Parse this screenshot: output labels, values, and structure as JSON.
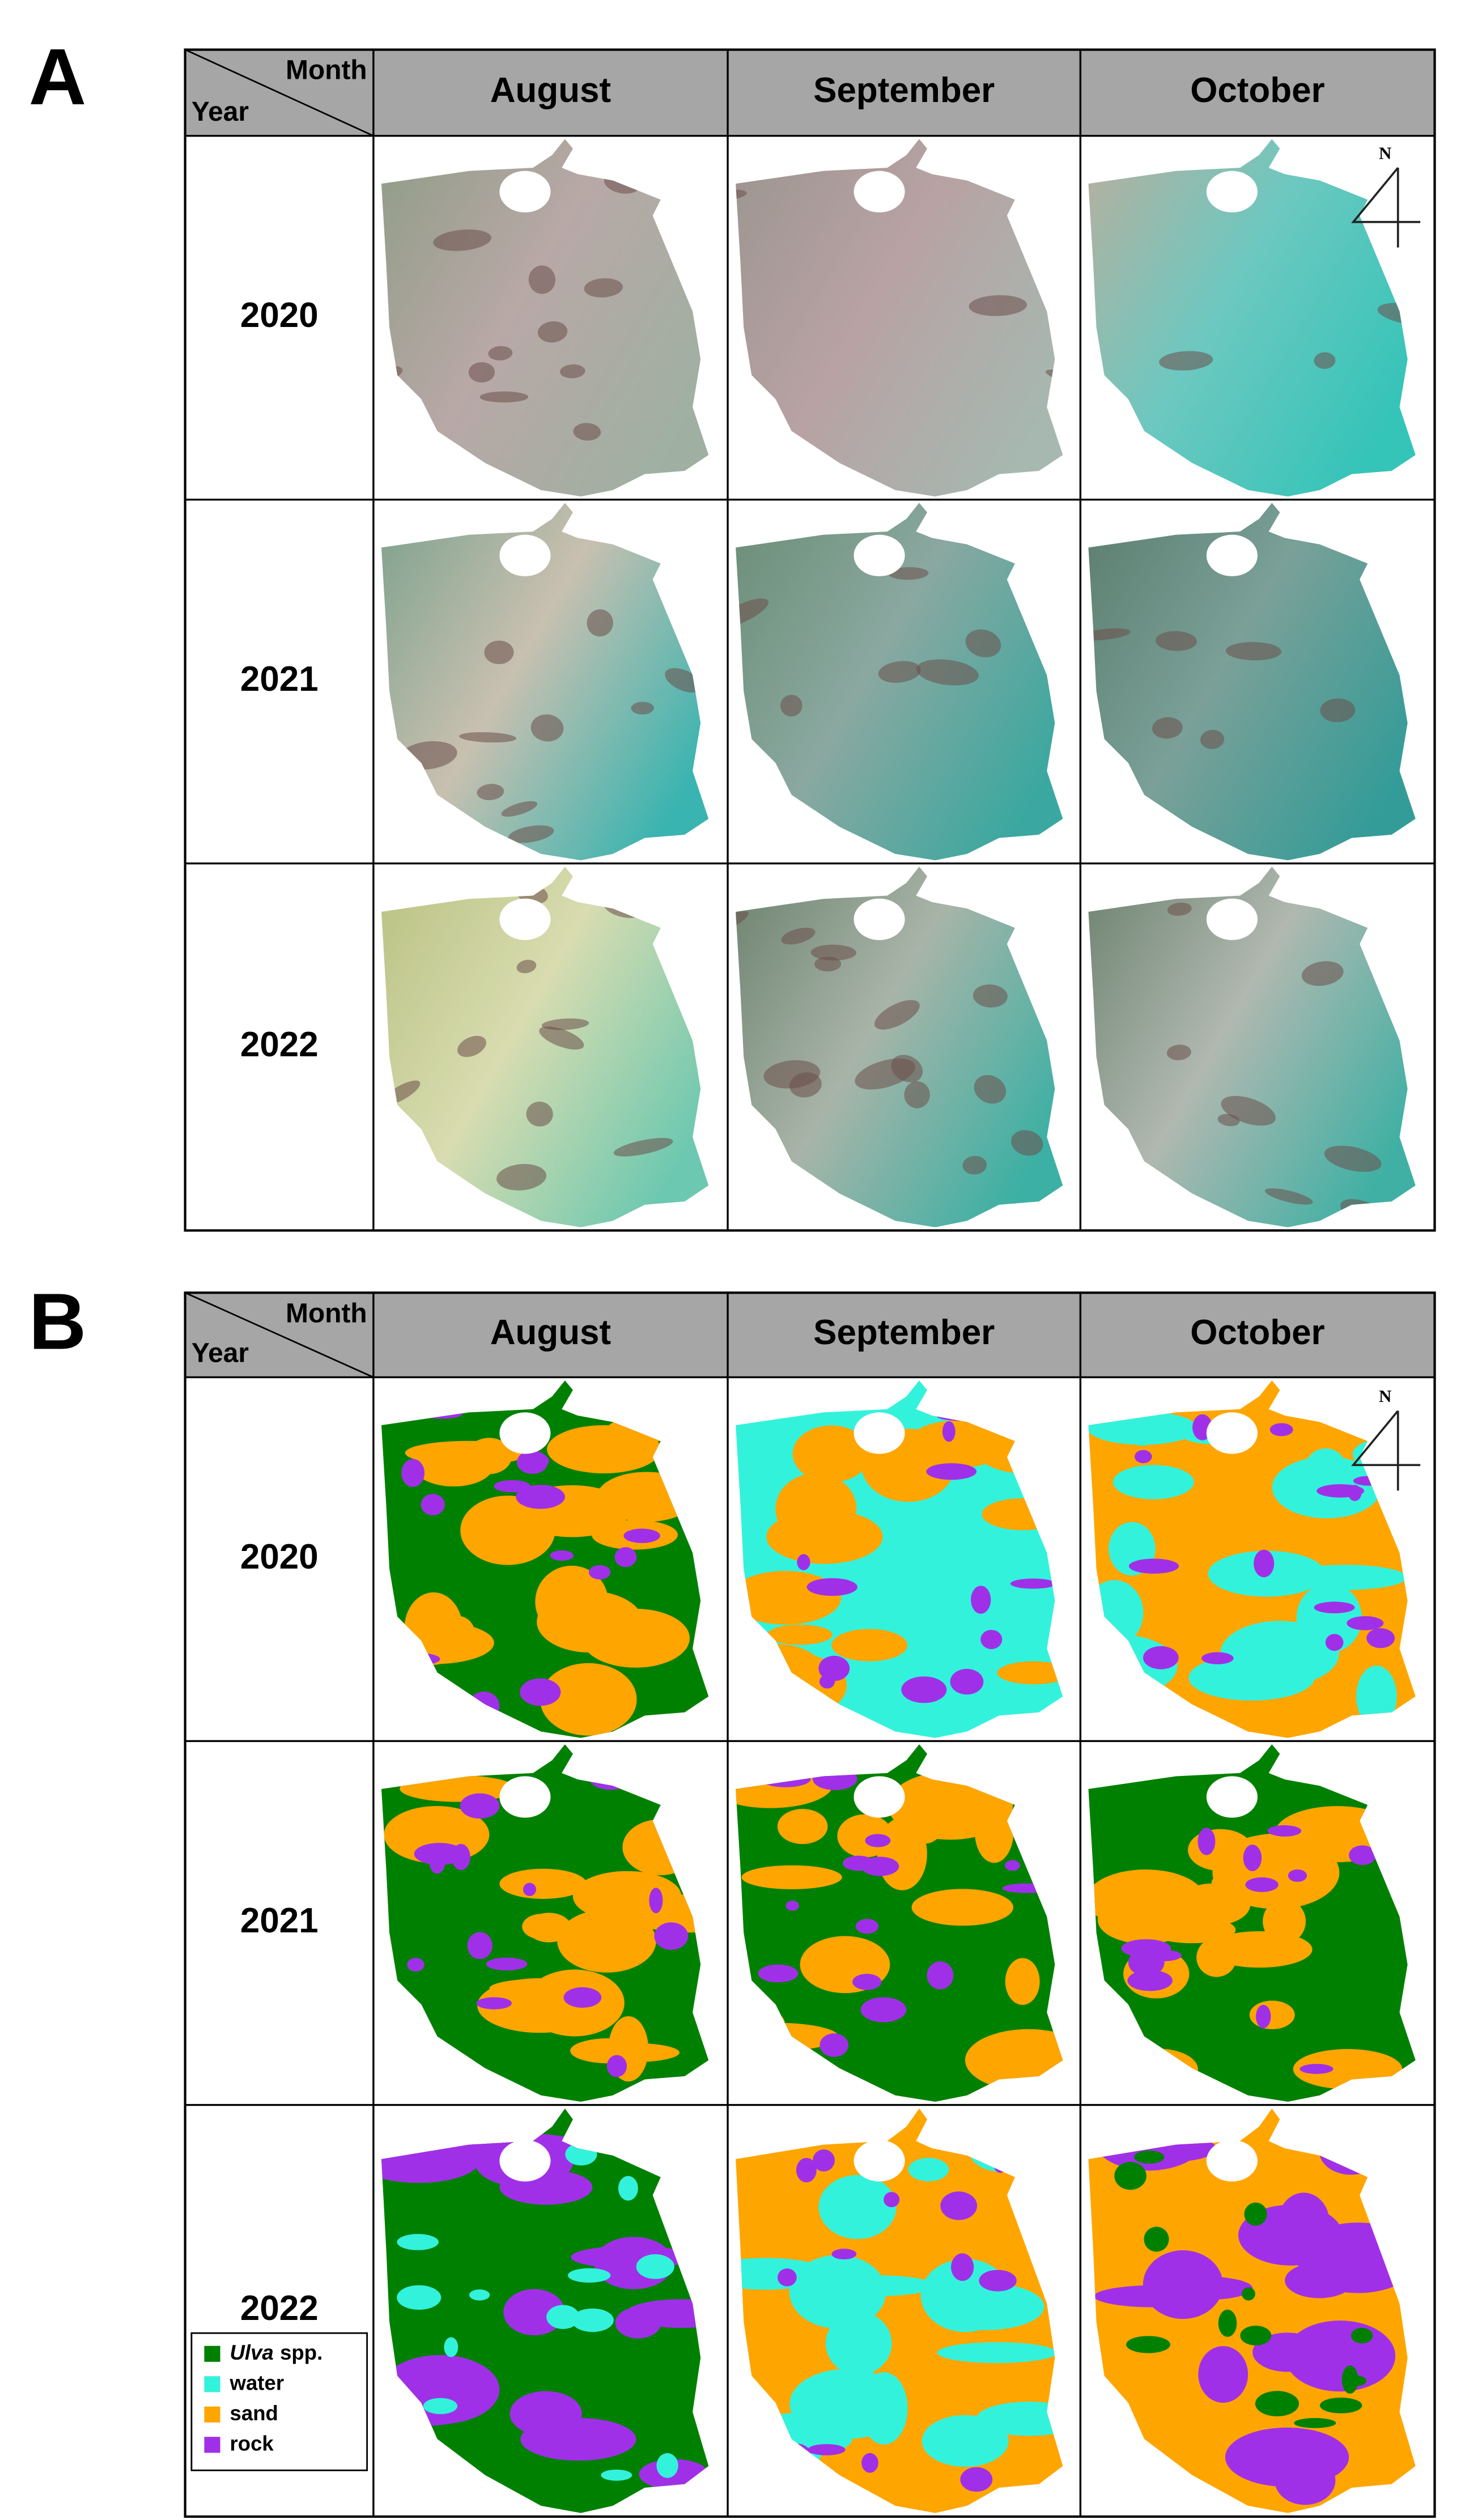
{
  "panels": [
    {
      "label": "A",
      "corner_top": "Month",
      "corner_bottom": "Year",
      "columns": [
        "August",
        "September",
        "October"
      ],
      "rows": [
        "2020",
        "2021",
        "2022"
      ]
    },
    {
      "label": "B",
      "corner_top": "Month",
      "corner_bottom": "Year",
      "columns": [
        "August",
        "September",
        "October"
      ],
      "rows": [
        "2020",
        "2021",
        "2022"
      ]
    }
  ],
  "north_label": "N",
  "legend": [
    {
      "label_italic": "Ulva",
      "label": "spp.",
      "color": "#008000"
    },
    {
      "label": "water",
      "color": "#33f2dc"
    },
    {
      "label": "sand",
      "color": "#ffa500"
    },
    {
      "label": "rock",
      "color": "#a030e8"
    }
  ]
}
